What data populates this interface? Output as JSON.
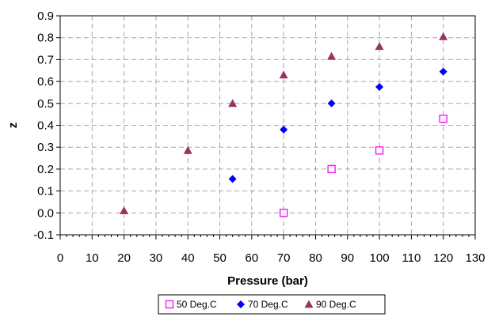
{
  "chart_data": {
    "type": "scatter",
    "xlabel": "Pressure (bar)",
    "ylabel": "z",
    "xlim": [
      0,
      130
    ],
    "ylim": [
      -0.1,
      0.9
    ],
    "x_ticks": [
      "0",
      "10",
      "20",
      "30",
      "40",
      "50",
      "60",
      "70",
      "80",
      "90",
      "100",
      "110",
      "120",
      "130"
    ],
    "y_ticks": [
      "-0.1",
      "0.0",
      "0.1",
      "0.2",
      "0.3",
      "0.4",
      "0.5",
      "0.6",
      "0.7",
      "0.8",
      "0.9"
    ],
    "grid": true,
    "legend_position": "bottom",
    "series": [
      {
        "name": "50 Deg.C",
        "marker": "open-square",
        "color": "#ff00ff",
        "points": [
          [
            70,
            0.0
          ],
          [
            85,
            0.2
          ],
          [
            100,
            0.285
          ],
          [
            120,
            0.43
          ]
        ]
      },
      {
        "name": "70 Deg.C",
        "marker": "diamond",
        "color": "#0000ff",
        "points": [
          [
            54,
            0.155
          ],
          [
            70,
            0.38
          ],
          [
            85,
            0.5
          ],
          [
            100,
            0.575
          ],
          [
            120,
            0.645
          ]
        ]
      },
      {
        "name": "90 Deg.C",
        "marker": "triangle",
        "color": "#993366",
        "points": [
          [
            20,
            0.01
          ],
          [
            40,
            0.285
          ],
          [
            54,
            0.5
          ],
          [
            70,
            0.63
          ],
          [
            85,
            0.715
          ],
          [
            100,
            0.76
          ],
          [
            120,
            0.805
          ]
        ]
      }
    ]
  }
}
